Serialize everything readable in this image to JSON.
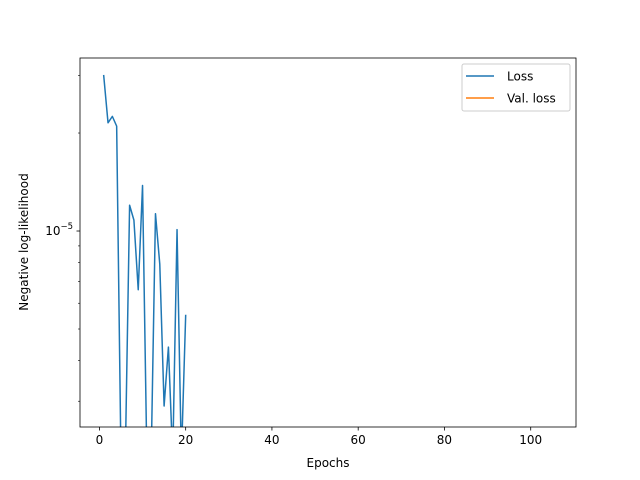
{
  "chart_data": {
    "type": "line",
    "title": "",
    "xlabel": "Epochs",
    "ylabel": "Negative log-likelihood",
    "xlim": [
      -4.5,
      110.5
    ],
    "ylim": [
      2.5e-06,
      3.4e-05
    ],
    "yscale": "log",
    "x_ticks": [
      0,
      20,
      40,
      60,
      80,
      100
    ],
    "x_tick_labels": [
      "0",
      "20",
      "40",
      "60",
      "80",
      "100"
    ],
    "y_major_ticks": [
      1e-05
    ],
    "y_major_tick_labels": [
      {
        "base": "10",
        "exp": "−5"
      }
    ],
    "y_minor_ticks": [
      3e-06,
      4e-06,
      5e-06,
      6e-06,
      7e-06,
      8e-06,
      9e-06,
      2e-05,
      3e-05
    ],
    "grid": false,
    "legend": {
      "position": "top-right",
      "entries": [
        {
          "label": "Loss",
          "color": "#1f77b4"
        },
        {
          "label": "Val. loss",
          "color": "#ff7f0e"
        }
      ]
    },
    "series": [
      {
        "name": "Loss",
        "color": "#1f77b4",
        "x": [
          1,
          2,
          3,
          4,
          5,
          6,
          7,
          8,
          9,
          10,
          11,
          12,
          13,
          14,
          15,
          16,
          17,
          18,
          19,
          20
        ],
        "y": [
          3e-05,
          2.15e-05,
          2.25e-05,
          2.1e-05,
          2e-06,
          2e-06,
          1.2e-05,
          1.08e-05,
          6.6e-06,
          1.38e-05,
          2e-06,
          2e-06,
          1.13e-05,
          7.9e-06,
          2.9e-06,
          4.4e-06,
          2e-06,
          1.01e-05,
          2e-06,
          5.5e-06
        ]
      },
      {
        "name": "Val. loss",
        "color": "#ff7f0e",
        "x": [],
        "y": []
      }
    ]
  }
}
